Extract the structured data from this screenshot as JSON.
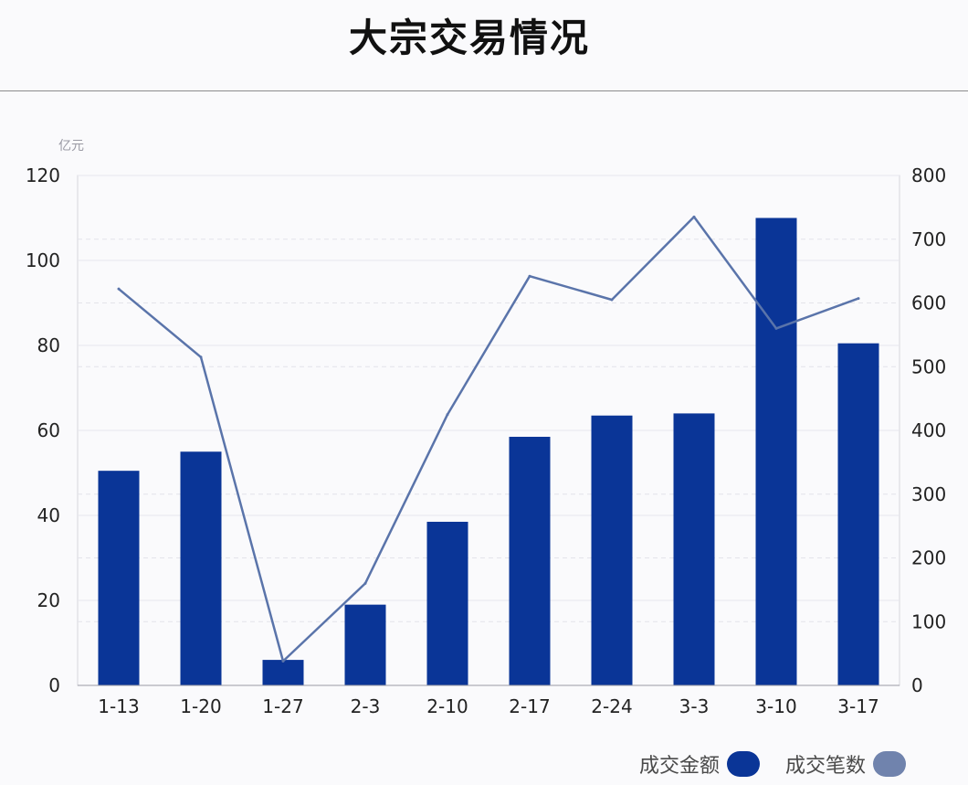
{
  "title": "大宗交易情况",
  "chart_data": {
    "type": "bar+line",
    "title": "大宗交易情况",
    "left_unit": "亿元",
    "categories": [
      "1-13",
      "1-20",
      "1-27",
      "2-3",
      "2-10",
      "2-17",
      "2-24",
      "3-3",
      "3-10",
      "3-17"
    ],
    "series": [
      {
        "name": "成交金额",
        "type": "bar",
        "axis": "left",
        "color": "#0a3597",
        "values": [
          50.5,
          55,
          6,
          19,
          38.5,
          58.5,
          63.5,
          64,
          110,
          80.5
        ]
      },
      {
        "name": "成交笔数",
        "type": "line",
        "axis": "right",
        "color": "#5a74aa",
        "values": [
          622,
          515,
          38,
          160,
          425,
          642,
          605,
          735,
          560,
          607
        ]
      }
    ],
    "y_left": {
      "min": 0,
      "max": 120,
      "ticks": [
        0,
        20,
        40,
        60,
        80,
        100,
        120
      ]
    },
    "y_right": {
      "min": 0,
      "max": 800,
      "ticks": [
        0,
        100,
        200,
        300,
        400,
        500,
        600,
        700,
        800
      ]
    },
    "grid": true,
    "legend": "bottom-right"
  },
  "legend": [
    {
      "label": "成交金额",
      "color": "#0a3597"
    },
    {
      "label": "成交笔数",
      "color": "#7083ad"
    }
  ]
}
